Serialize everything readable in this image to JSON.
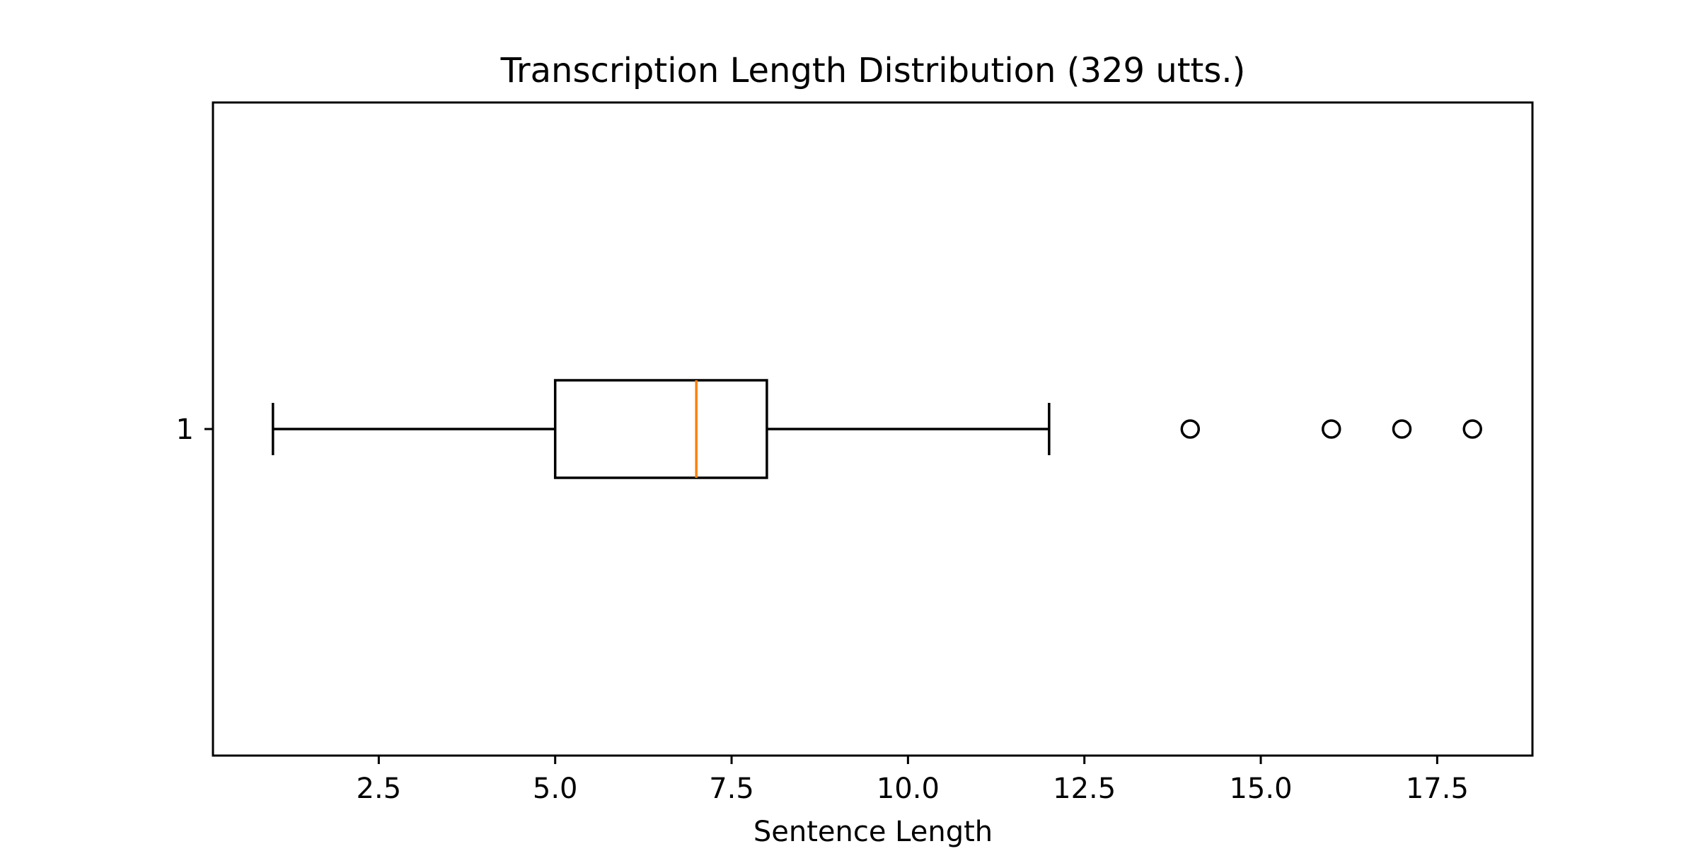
{
  "chart_data": {
    "type": "boxplot",
    "orientation": "horizontal",
    "title": "Transcription Length Distribution (329 utts.)",
    "xlabel": "Sentence Length",
    "ylabel": "",
    "xlim": [
      0.15,
      18.85
    ],
    "x_ticks": [
      2.5,
      5.0,
      7.5,
      10.0,
      12.5,
      15.0,
      17.5
    ],
    "x_tick_labels": [
      "2.5",
      "5.0",
      "7.5",
      "10.0",
      "12.5",
      "15.0",
      "17.5"
    ],
    "y_tick_labels": [
      "1"
    ],
    "grid": false,
    "legend": "none",
    "boxes": [
      {
        "category": "1",
        "whisker_low": 1,
        "q1": 5,
        "median": 7,
        "q3": 8,
        "whisker_high": 12,
        "outliers": [
          14,
          16,
          17,
          18
        ]
      }
    ],
    "colors": {
      "box": "#000000",
      "median": "#ff7f0e",
      "whisker": "#000000",
      "outlier": "#000000"
    }
  }
}
